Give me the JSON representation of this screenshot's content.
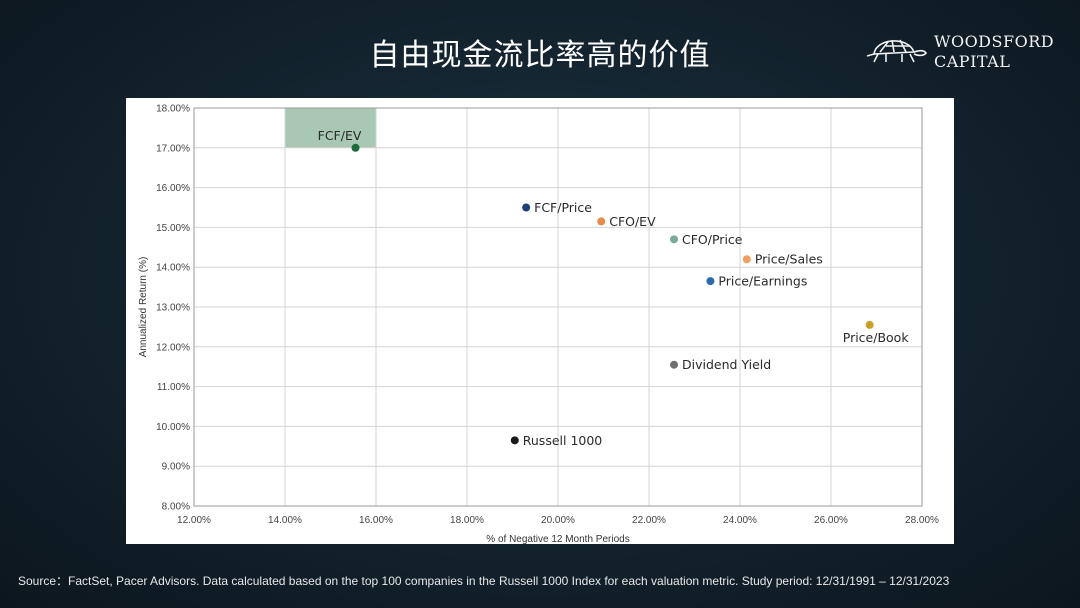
{
  "slide": {
    "title": "自由现金流比率高的价值",
    "source": "Source：FactSet, Pacer Advisors. Data calculated based on the top 100 companies in the Russell 1000 Index for each valuation metric. Study period: 12/31/1991 – 12/31/2023"
  },
  "logo": {
    "line1": "WOODSFORD",
    "line2": "CAPITAL"
  },
  "colors": {
    "dark_green": "#1e6b3a",
    "navy": "#1f3f78",
    "orange": "#e8894a",
    "light_orange": "#f0a060",
    "teal": "#7aaa9a",
    "blue": "#2b6ca8",
    "gold": "#c8a028",
    "gray": "#707070",
    "black": "#1a1a1a",
    "highlight": "#a8c8b4"
  },
  "chart_data": {
    "type": "scatter",
    "title": "",
    "xlabel": "% of Negative 12 Month Periods",
    "ylabel": "Annualized Return (%)",
    "xlim": [
      12,
      28
    ],
    "ylim": [
      8,
      18
    ],
    "grid": true,
    "x_ticks": [
      12,
      14,
      16,
      18,
      20,
      22,
      24,
      26,
      28
    ],
    "y_ticks": [
      8,
      9,
      10,
      11,
      12,
      13,
      14,
      15,
      16,
      17,
      18
    ],
    "x_tick_labels": [
      "12.00%",
      "14.00%",
      "16.00%",
      "18.00%",
      "20.00%",
      "22.00%",
      "24.00%",
      "26.00%",
      "28.00%"
    ],
    "y_tick_labels": [
      "8.00%",
      "9.00%",
      "10.00%",
      "11.00%",
      "12.00%",
      "13.00%",
      "14.00%",
      "15.00%",
      "16.00%",
      "17.00%",
      "18.00%"
    ],
    "highlight_region": {
      "x": [
        14,
        16
      ],
      "y": [
        17,
        18
      ]
    },
    "points": [
      {
        "label": "FCF/EV",
        "x": 15.55,
        "y": 17.0,
        "color": "#1e6b3a"
      },
      {
        "label": "FCF/Price",
        "x": 19.3,
        "y": 15.5,
        "color": "#1f3f78"
      },
      {
        "label": "CFO/EV",
        "x": 20.95,
        "y": 15.15,
        "color": "#e8894a"
      },
      {
        "label": "CFO/Price",
        "x": 22.55,
        "y": 14.7,
        "color": "#7aaa9a"
      },
      {
        "label": "Price/Sales",
        "x": 24.15,
        "y": 14.2,
        "color": "#f0a060"
      },
      {
        "label": "Price/Earnings",
        "x": 23.35,
        "y": 13.65,
        "color": "#2b6ca8"
      },
      {
        "label": "Price/Book",
        "x": 26.85,
        "y": 12.55,
        "color": "#c8a028"
      },
      {
        "label": "Dividend Yield",
        "x": 22.55,
        "y": 11.55,
        "color": "#707070"
      },
      {
        "label": "Russell 1000",
        "x": 19.05,
        "y": 9.65,
        "color": "#1a1a1a"
      }
    ]
  }
}
